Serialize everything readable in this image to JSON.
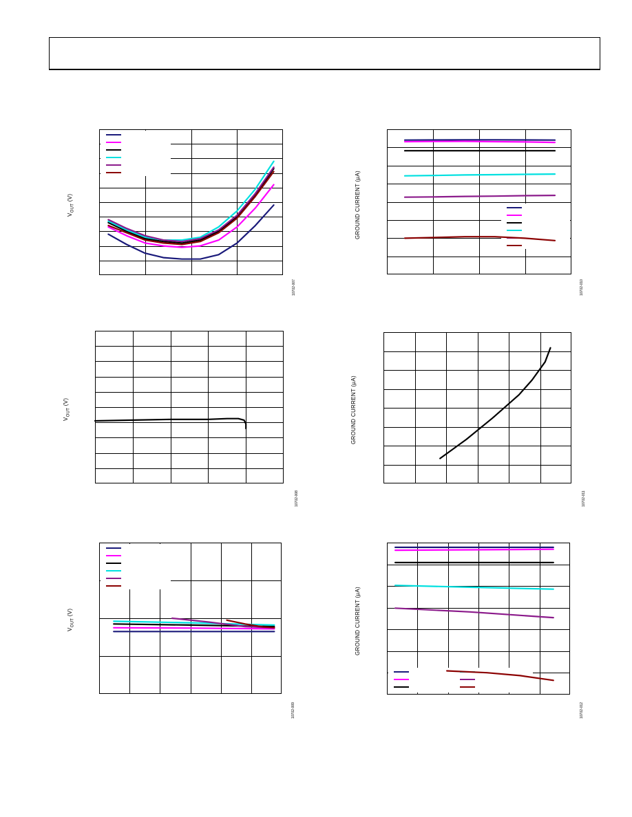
{
  "header": {
    "text": ""
  },
  "charts": [
    {
      "id": "c1",
      "ylabel_main": "V",
      "ylabel_sub": "OUT",
      "ylabel_unit": " (V)",
      "fig_id": "10702-007",
      "legend_colors": [
        "#1a1a7a",
        "#ff00ff",
        "#000000",
        "#00e0e0",
        "#8b1a8b",
        "#8b0000"
      ]
    },
    {
      "id": "c2",
      "ylabel_main": "GROUND CURRENT (µA)",
      "ylabel_sub": "",
      "ylabel_unit": "",
      "fig_id": "10702-010",
      "legend_colors": [
        "#1a1a7a",
        "#ff00ff",
        "#000000",
        "#00e0e0",
        "#8b1a8b",
        "#8b0000"
      ]
    },
    {
      "id": "c3",
      "ylabel_main": "V",
      "ylabel_sub": "OUT",
      "ylabel_unit": " (V)",
      "fig_id": "10702-008",
      "legend_colors": []
    },
    {
      "id": "c4",
      "ylabel_main": "GROUND CURRENT (µA)",
      "ylabel_sub": "",
      "ylabel_unit": "",
      "fig_id": "10702-011",
      "legend_colors": []
    },
    {
      "id": "c5",
      "ylabel_main": "V",
      "ylabel_sub": "OUT",
      "ylabel_unit": " (V)",
      "fig_id": "10702-009",
      "legend_colors": [
        "#1a1a7a",
        "#ff00ff",
        "#000000",
        "#00e0e0",
        "#8b1a8b",
        "#8b0000"
      ]
    },
    {
      "id": "c6",
      "ylabel_main": "GROUND CURRENT (µA)",
      "ylabel_sub": "",
      "ylabel_unit": "",
      "fig_id": "10702-012",
      "legend_colors": [
        "#1a1a7a",
        "#ff00ff",
        "#000000",
        "#00e0e0",
        "#8b1a8b",
        "#8b0000"
      ]
    }
  ],
  "chart_data": [
    {
      "type": "line",
      "ylabel": "VOUT (V)",
      "xlim": [
        0,
        10
      ],
      "ylim": [
        0,
        10
      ],
      "series": [
        {
          "color": "#1a1a7a",
          "x": [
            0.5,
            1.5,
            2.5,
            3.5,
            4.5,
            5.5,
            6.5,
            7.5,
            8.5,
            9.5
          ],
          "y": [
            2.8,
            2.1,
            1.5,
            1.2,
            1.1,
            1.1,
            1.4,
            2.2,
            3.4,
            4.8
          ]
        },
        {
          "color": "#ff00ff",
          "x": [
            0.5,
            1.5,
            2.5,
            3.5,
            4.5,
            5.5,
            6.5,
            7.5,
            8.5,
            9.5
          ],
          "y": [
            3.3,
            2.7,
            2.2,
            2.0,
            1.9,
            2.0,
            2.4,
            3.3,
            4.6,
            6.2
          ]
        },
        {
          "color": "#000000",
          "x": [
            0.5,
            1.5,
            2.5,
            3.5,
            4.5,
            5.5,
            6.5,
            7.5,
            8.5,
            9.5
          ],
          "y": [
            3.6,
            3.0,
            2.5,
            2.3,
            2.2,
            2.4,
            3.0,
            4.0,
            5.5,
            7.3
          ]
        },
        {
          "color": "#00e0e0",
          "x": [
            0.5,
            1.5,
            2.5,
            3.5,
            4.5,
            5.5,
            6.5,
            7.5,
            8.5,
            9.5
          ],
          "y": [
            3.7,
            3.1,
            2.6,
            2.4,
            2.4,
            2.6,
            3.3,
            4.4,
            5.9,
            7.8
          ]
        },
        {
          "color": "#8b1a8b",
          "x": [
            0.5,
            1.5,
            2.5,
            3.5,
            4.5,
            5.5,
            6.5,
            7.5,
            8.5,
            9.5
          ],
          "y": [
            3.8,
            3.2,
            2.7,
            2.4,
            2.3,
            2.5,
            3.1,
            4.1,
            5.6,
            7.4
          ]
        },
        {
          "color": "#8b0000",
          "x": [
            0.5,
            1.5,
            2.5,
            3.5,
            4.5,
            5.5,
            6.5,
            7.5,
            8.5,
            9.5
          ],
          "y": [
            3.4,
            2.9,
            2.4,
            2.2,
            2.1,
            2.3,
            2.9,
            3.9,
            5.4,
            7.1
          ]
        }
      ]
    },
    {
      "type": "line",
      "ylabel": "GROUND CURRENT (µA)",
      "xlim": [
        0,
        10
      ],
      "ylim": [
        0,
        8
      ],
      "series": [
        {
          "color": "#1a1a7a",
          "x": [
            0,
            2,
            4,
            6,
            8,
            10
          ],
          "y": [
            7.65,
            7.66,
            7.67,
            7.67,
            7.66,
            7.65
          ]
        },
        {
          "color": "#ff00ff",
          "x": [
            0,
            2,
            4,
            6,
            8,
            10
          ],
          "y": [
            7.55,
            7.56,
            7.57,
            7.55,
            7.53,
            7.5
          ]
        },
        {
          "color": "#000000",
          "x": [
            0,
            10
          ],
          "y": [
            6.95,
            6.95
          ]
        },
        {
          "color": "#00e0e0",
          "x": [
            0,
            2,
            4,
            6,
            8,
            10
          ],
          "y": [
            5.3,
            5.33,
            5.36,
            5.38,
            5.4,
            5.42
          ]
        },
        {
          "color": "#8b1a8b",
          "x": [
            0,
            2,
            4,
            6,
            8,
            10
          ],
          "y": [
            3.9,
            3.92,
            3.95,
            3.97,
            4.0,
            4.02
          ]
        },
        {
          "color": "#8b0000",
          "x": [
            0,
            2,
            4,
            6,
            8,
            10
          ],
          "y": [
            1.2,
            1.25,
            1.3,
            1.3,
            1.2,
            1.05
          ]
        }
      ]
    },
    {
      "type": "line",
      "ylabel": "VOUT (V)",
      "xlim": [
        0,
        10
      ],
      "ylim": [
        0,
        10
      ],
      "series": [
        {
          "color": "#000000",
          "x": [
            0,
            2,
            4,
            6,
            7,
            7.6,
            7.9,
            8.0,
            8.0
          ],
          "y": [
            4.1,
            4.15,
            4.2,
            4.2,
            4.25,
            4.25,
            4.15,
            3.9,
            3.6
          ]
        }
      ]
    },
    {
      "type": "line",
      "ylabel": "GROUND CURRENT (µA)",
      "xlim": [
        0,
        6
      ],
      "ylim": [
        0,
        8
      ],
      "series": [
        {
          "color": "#000000",
          "x": [
            1,
            2,
            3,
            4,
            4.5,
            5,
            5.2
          ],
          "y": [
            0.35,
            1.5,
            2.8,
            4.2,
            5.1,
            6.2,
            7.05
          ]
        }
      ]
    },
    {
      "type": "line",
      "ylabel": "VOUT (V)",
      "xlim": [
        0,
        10
      ],
      "ylim": [
        0,
        4
      ],
      "series": [
        {
          "color": "#1a1a7a",
          "x": [
            0.8,
            9.6
          ],
          "y": [
            1.65,
            1.65
          ]
        },
        {
          "color": "#ff00ff",
          "x": [
            0.8,
            5,
            9.6
          ],
          "y": [
            1.75,
            1.74,
            1.72
          ]
        },
        {
          "color": "#000000",
          "x": [
            0.8,
            5,
            9.6
          ],
          "y": [
            1.85,
            1.82,
            1.78
          ]
        },
        {
          "color": "#00e0e0",
          "x": [
            0.8,
            5,
            9.6
          ],
          "y": [
            1.92,
            1.88,
            1.82
          ]
        },
        {
          "color": "#8b1a8b",
          "x": [
            4,
            6,
            8,
            9.6
          ],
          "y": [
            2.0,
            1.9,
            1.78,
            1.75
          ]
        },
        {
          "color": "#8b0000",
          "x": [
            7,
            8,
            9,
            9.6
          ],
          "y": [
            1.95,
            1.85,
            1.77,
            1.75
          ]
        }
      ]
    },
    {
      "type": "line",
      "ylabel": "GROUND CURRENT (µA)",
      "xlim": [
        0,
        11
      ],
      "ylim": [
        0,
        8
      ],
      "series": [
        {
          "color": "#1a1a7a",
          "x": [
            0.5,
            10
          ],
          "y": [
            7.75,
            7.75
          ]
        },
        {
          "color": "#ff00ff",
          "x": [
            0.5,
            5,
            10
          ],
          "y": [
            7.6,
            7.62,
            7.65
          ]
        },
        {
          "color": "#000000",
          "x": [
            0.5,
            10
          ],
          "y": [
            6.95,
            6.95
          ]
        },
        {
          "color": "#00e0e0",
          "x": [
            0.5,
            5,
            10
          ],
          "y": [
            5.75,
            5.65,
            5.55
          ]
        },
        {
          "color": "#8b1a8b",
          "x": [
            0.5,
            5,
            10
          ],
          "y": [
            4.55,
            4.35,
            4.05
          ]
        },
        {
          "color": "#8b0000",
          "x": [
            3.6,
            6,
            8,
            10
          ],
          "y": [
            1.25,
            1.15,
            1.0,
            0.75
          ]
        }
      ]
    }
  ]
}
